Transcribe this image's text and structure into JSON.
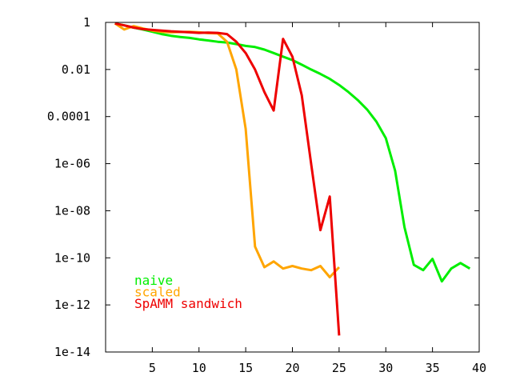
{
  "chart_data": {
    "type": "line",
    "title": "",
    "xlabel": "",
    "ylabel": "",
    "xlim": [
      0,
      40
    ],
    "ylim": [
      1e-14,
      1
    ],
    "yscale": "log",
    "grid": false,
    "legend_placement": "bottom-left",
    "x_ticks": [
      5,
      10,
      15,
      20,
      25,
      30,
      35,
      40
    ],
    "x_tick_labels": [
      "5",
      "10",
      "15",
      "20",
      "25",
      "30",
      "35",
      "40"
    ],
    "y_ticks": [
      1,
      0.01,
      0.0001,
      1e-06,
      1e-08,
      1e-10,
      1e-12,
      1e-14
    ],
    "y_tick_labels": [
      "1",
      "0.01",
      "0.0001",
      "1e-06",
      "1e-08",
      "1e-10",
      "1e-12",
      "1e-14"
    ],
    "series": [
      {
        "name": "naive",
        "color": "#00ee00",
        "x": [
          1,
          2,
          3,
          4,
          5,
          6,
          7,
          8,
          9,
          10,
          11,
          12,
          13,
          14,
          15,
          16,
          17,
          18,
          19,
          20,
          21,
          22,
          23,
          24,
          25,
          26,
          27,
          28,
          29,
          30,
          31,
          32,
          33,
          34,
          35,
          36,
          37,
          38,
          39
        ],
        "y": [
          0.9,
          0.75,
          0.6,
          0.5,
          0.4,
          0.32,
          0.27,
          0.24,
          0.22,
          0.19,
          0.17,
          0.15,
          0.14,
          0.12,
          0.1,
          0.09,
          0.07,
          0.05,
          0.035,
          0.025,
          0.016,
          0.01,
          0.0065,
          0.004,
          0.0022,
          0.0011,
          0.0005,
          0.0002,
          6e-05,
          1.2e-05,
          5e-07,
          2e-09,
          5e-11,
          3e-11,
          9e-11,
          1e-11,
          3.5e-11,
          6e-11,
          3.5e-11
        ]
      },
      {
        "name": "scaled",
        "color": "#ffa500",
        "x": [
          1,
          2,
          3,
          4,
          5,
          6,
          7,
          8,
          9,
          10,
          11,
          12,
          13,
          14,
          15,
          16,
          17,
          18,
          19,
          20,
          21,
          22,
          23,
          24,
          25
        ],
        "y": [
          0.9,
          0.5,
          0.7,
          0.55,
          0.45,
          0.4,
          0.38,
          0.39,
          0.4,
          0.38,
          0.35,
          0.34,
          0.15,
          0.01,
          3e-05,
          3e-10,
          4e-11,
          7e-11,
          3.5e-11,
          4.5e-11,
          3.5e-11,
          3e-11,
          4.5e-11,
          1.5e-11,
          4e-11
        ]
      },
      {
        "name": "SpAMM sandwich",
        "color": "#ee0000",
        "x": [
          1,
          2,
          3,
          4,
          5,
          6,
          7,
          8,
          9,
          10,
          11,
          12,
          13,
          14,
          15,
          16,
          17,
          18,
          19,
          20,
          21,
          22,
          23,
          24,
          25
        ],
        "y": [
          0.9,
          0.75,
          0.6,
          0.52,
          0.48,
          0.45,
          0.42,
          0.4,
          0.38,
          0.36,
          0.37,
          0.36,
          0.32,
          0.15,
          0.05,
          0.01,
          0.0011,
          0.00018,
          0.2,
          0.035,
          0.0008,
          1e-06,
          1.5e-09,
          4e-08,
          5e-14
        ]
      }
    ]
  }
}
